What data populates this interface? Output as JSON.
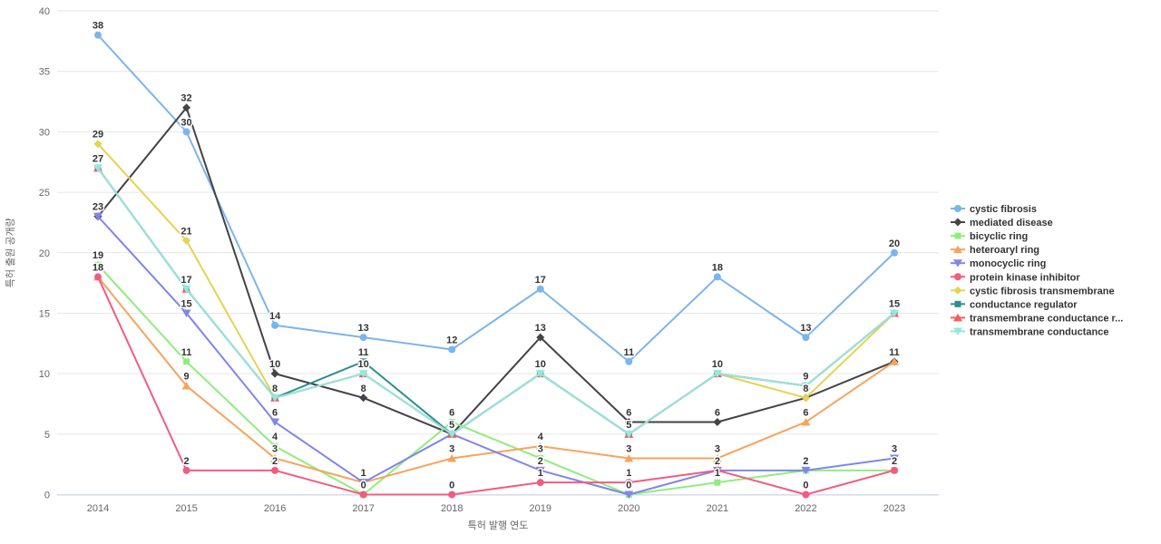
{
  "chart_data": {
    "type": "line",
    "title": "",
    "xlabel": "특허 발행 연도",
    "ylabel": "특허 출원 공개량",
    "years": [
      "2014",
      "2015",
      "2016",
      "2017",
      "2018",
      "2019",
      "2020",
      "2021",
      "2022",
      "2023"
    ],
    "ylim": [
      0,
      40
    ],
    "y_ticks": [
      0,
      5,
      10,
      15,
      20,
      25,
      30,
      35,
      40
    ],
    "grid": true,
    "legend_position": "right",
    "colors": {
      "grid": "#e6e6e6",
      "axis_line": "#ccd6eb",
      "tick_text": "#666666",
      "label_text": "#333333"
    },
    "series": [
      {
        "name": "cystic fibrosis",
        "color": "#7CB5EC",
        "marker": "circle",
        "values": [
          38,
          30,
          14,
          13,
          12,
          17,
          11,
          18,
          13,
          20
        ]
      },
      {
        "name": "mediated disease",
        "color": "#434348",
        "marker": "diamond",
        "values": [
          23,
          32,
          10,
          8,
          5,
          13,
          6,
          6,
          8,
          11
        ]
      },
      {
        "name": "bicyclic ring",
        "color": "#90ED7D",
        "marker": "square",
        "values": [
          19,
          11,
          4,
          0,
          6,
          3,
          0,
          1,
          2,
          2
        ]
      },
      {
        "name": "heteroaryl ring",
        "color": "#F7A35C",
        "marker": "triangle",
        "values": [
          18,
          9,
          3,
          1,
          3,
          4,
          3,
          3,
          6,
          11
        ]
      },
      {
        "name": "monocyclic ring",
        "color": "#8085E9",
        "marker": "triangle-down",
        "values": [
          23,
          15,
          6,
          1,
          5,
          2,
          0,
          2,
          2,
          3
        ]
      },
      {
        "name": "protein kinase inhibitor",
        "color": "#F15C80",
        "marker": "circle",
        "values": [
          18,
          2,
          2,
          0,
          0,
          1,
          1,
          2,
          0,
          2
        ]
      },
      {
        "name": "cystic fibrosis transmembrane",
        "color": "#E4D354",
        "marker": "diamond",
        "values": [
          29,
          21,
          8,
          10,
          5,
          10,
          5,
          10,
          8,
          15
        ]
      },
      {
        "name": "conductance regulator",
        "color": "#2B908F",
        "marker": "square",
        "values": [
          27,
          17,
          8,
          11,
          5,
          10,
          5,
          10,
          9,
          15
        ]
      },
      {
        "name": "transmembrane conductance r...",
        "color": "#F45B5B",
        "marker": "triangle",
        "values": [
          27,
          17,
          8,
          10,
          5,
          10,
          5,
          10,
          9,
          15
        ]
      },
      {
        "name": "transmembrane conductance",
        "color": "#91E8E1",
        "marker": "triangle-down",
        "values": [
          27,
          17,
          8,
          10,
          5,
          10,
          5,
          10,
          9,
          15
        ]
      }
    ]
  }
}
